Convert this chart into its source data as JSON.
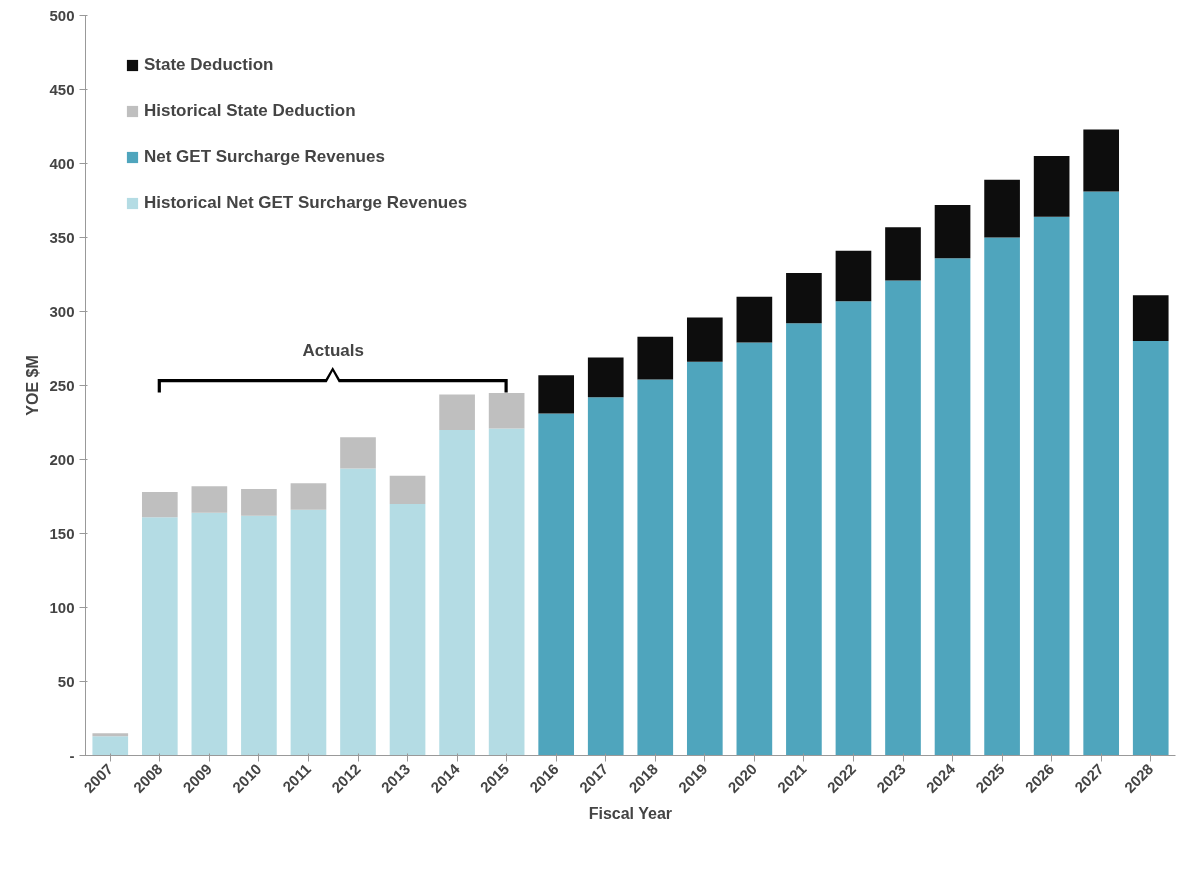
{
  "chart_data": {
    "type": "bar",
    "stacked": true,
    "xlabel": "Fiscal Year",
    "ylabel": "YOE $M",
    "categories": [
      "2007",
      "2008",
      "2009",
      "2010",
      "2011",
      "2012",
      "2013",
      "2014",
      "2015",
      "2016",
      "2017",
      "2018",
      "2019",
      "2020",
      "2021",
      "2022",
      "2023",
      "2024",
      "2025",
      "2026",
      "2027",
      "2028"
    ],
    "series": [
      {
        "name": "Historical Net GET Surcharge Revenues",
        "color": "#b4dce4",
        "values": [
          13,
          161,
          164,
          162,
          166,
          194,
          170,
          220,
          221,
          null,
          null,
          null,
          null,
          null,
          null,
          null,
          null,
          null,
          null,
          null,
          null,
          null
        ]
      },
      {
        "name": "Net GET Surcharge Revenues",
        "color": "#4fa5bd",
        "values": [
          null,
          null,
          null,
          null,
          null,
          null,
          null,
          null,
          null,
          231,
          242,
          254,
          266,
          279,
          292,
          307,
          321,
          336,
          350,
          364,
          381,
          280
        ]
      },
      {
        "name": "Historical State Deduction",
        "color": "#bfbfbf",
        "values": [
          2,
          17,
          18,
          18,
          18,
          21,
          19,
          24,
          24,
          null,
          null,
          null,
          null,
          null,
          null,
          null,
          null,
          null,
          null,
          null,
          null,
          null
        ]
      },
      {
        "name": "State Deduction",
        "color": "#0d0d0d",
        "values": [
          null,
          null,
          null,
          null,
          null,
          null,
          null,
          null,
          null,
          26,
          27,
          29,
          30,
          31,
          34,
          34,
          36,
          36,
          39,
          41,
          42,
          31
        ]
      }
    ],
    "ylim": [
      0,
      500
    ],
    "yticks": [
      {
        "value": 0,
        "label": "-"
      },
      50,
      100,
      150,
      200,
      250,
      300,
      350,
      400,
      450,
      500
    ],
    "grid": false,
    "legend": "top left",
    "annotations": [
      "Actuals"
    ]
  }
}
